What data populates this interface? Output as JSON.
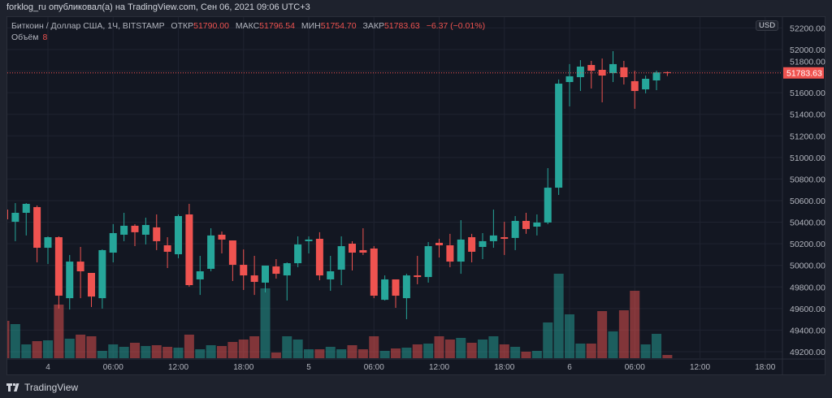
{
  "header": {
    "published": "forklog_ru опубликовал(а) на TradingView.com, Сен 06, 2021 09:06 UTC+3"
  },
  "legend": {
    "symbol": "Биткоин / Доллар США, 1Ч, BITSTAMP",
    "open_label": "ОТКР",
    "open": "51790.00",
    "high_label": "МАКС",
    "high": "51796.54",
    "low_label": "МИН",
    "low": "51754.70",
    "close_label": "ЗАКР",
    "close": "51783.63",
    "change": "−6.37 (−0.01%)",
    "volume_label": "Объём",
    "volume": "8"
  },
  "currency": "USD",
  "last_price_label": "51783.63",
  "footer": {
    "brand": "TradingView",
    "logo_icon": "tradingview-logo-icon"
  },
  "colors": {
    "up": "#26a69a",
    "down": "#ef5350",
    "background": "#131722",
    "grid": "#1f2330"
  },
  "chart_data": {
    "type": "candlestick",
    "interval": "1h",
    "ylim": [
      49150,
      52250
    ],
    "y_ticks": [
      "52200.00",
      "52000.00",
      "51800.00",
      "51600.00",
      "51400.00",
      "51200.00",
      "51000.00",
      "50800.00",
      "50600.00",
      "50400.00",
      "50200.00",
      "50000.00",
      "49800.00",
      "49600.00",
      "49400.00",
      "49200.00"
    ],
    "x_ticks": [
      {
        "t": "2021-09-04T00:00",
        "label": "4"
      },
      {
        "t": "2021-09-04T06:00",
        "label": "06:00"
      },
      {
        "t": "2021-09-04T12:00",
        "label": "12:00"
      },
      {
        "t": "2021-09-04T18:00",
        "label": "18:00"
      },
      {
        "t": "2021-09-05T00:00",
        "label": "5"
      },
      {
        "t": "2021-09-05T06:00",
        "label": "06:00"
      },
      {
        "t": "2021-09-05T12:00",
        "label": "12:00"
      },
      {
        "t": "2021-09-05T18:00",
        "label": "18:00"
      },
      {
        "t": "2021-09-06T00:00",
        "label": "6"
      },
      {
        "t": "2021-09-06T06:00",
        "label": "06:00"
      },
      {
        "t": "2021-09-06T12:00",
        "label": "12:00"
      },
      {
        "t": "2021-09-06T18:00",
        "label": "18:00"
      }
    ],
    "last_price": 51783.63,
    "columns": [
      "time",
      "open",
      "high",
      "low",
      "close",
      "volume"
    ],
    "candles": [
      [
        "2021-09-03T20:00",
        50517,
        50532,
        50412,
        50427,
        92
      ],
      [
        "2021-09-03T21:00",
        50404,
        50577,
        50224,
        50487,
        84
      ],
      [
        "2021-09-03T22:00",
        50487,
        50577,
        50277,
        50570,
        34
      ],
      [
        "2021-09-03T23:00",
        50540,
        50555,
        50028,
        50163,
        42
      ],
      [
        "2021-09-04T00:00",
        50163,
        50269,
        50013,
        50261,
        44
      ],
      [
        "2021-09-04T01:00",
        50261,
        50269,
        49599,
        49719,
        132
      ],
      [
        "2021-09-04T02:00",
        49696,
        50096,
        49591,
        50035,
        48
      ],
      [
        "2021-09-04T03:00",
        50035,
        50171,
        49696,
        49945,
        58
      ],
      [
        "2021-09-04T04:00",
        49930,
        49930,
        49614,
        49711,
        54
      ],
      [
        "2021-09-04T05:00",
        49696,
        50148,
        49599,
        50141,
        18
      ],
      [
        "2021-09-04T06:00",
        50118,
        50382,
        50028,
        50299,
        34
      ],
      [
        "2021-09-04T07:00",
        50284,
        50487,
        50224,
        50367,
        28
      ],
      [
        "2021-09-04T08:00",
        50367,
        50382,
        50178,
        50307,
        38
      ],
      [
        "2021-09-04T09:00",
        50284,
        50442,
        50194,
        50374,
        30
      ],
      [
        "2021-09-04T10:00",
        50352,
        50472,
        50141,
        50224,
        32
      ],
      [
        "2021-09-04T11:00",
        50186,
        50261,
        49975,
        50126,
        28
      ],
      [
        "2021-09-04T12:00",
        50103,
        50472,
        50066,
        50457,
        26
      ],
      [
        "2021-09-04T13:00",
        50472,
        50570,
        49802,
        49817,
        58
      ],
      [
        "2021-09-04T14:00",
        49870,
        50088,
        49726,
        49945,
        22
      ],
      [
        "2021-09-04T15:00",
        49968,
        50344,
        49945,
        50277,
        32
      ],
      [
        "2021-09-04T16:00",
        50284,
        50314,
        50111,
        50239,
        30
      ],
      [
        "2021-09-04T17:00",
        50231,
        50231,
        49855,
        50005,
        40
      ],
      [
        "2021-09-04T18:00",
        50005,
        50148,
        49772,
        49907,
        46
      ],
      [
        "2021-09-04T19:00",
        49907,
        50088,
        49726,
        49847,
        54
      ],
      [
        "2021-09-04T20:00",
        49840,
        49998,
        49749,
        49998,
        172
      ],
      [
        "2021-09-04T21:00",
        49990,
        50058,
        49877,
        49922,
        14
      ],
      [
        "2021-09-04T22:00",
        49907,
        50028,
        49674,
        50020,
        54
      ],
      [
        "2021-09-04T23:00",
        50020,
        50269,
        49983,
        50194,
        46
      ],
      [
        "2021-09-05T00:00",
        50224,
        50269,
        50111,
        50239,
        22
      ],
      [
        "2021-09-05T01:00",
        50246,
        50307,
        49862,
        49907,
        22
      ],
      [
        "2021-09-05T02:00",
        49870,
        50088,
        49764,
        49945,
        28
      ],
      [
        "2021-09-05T03:00",
        49960,
        50269,
        49817,
        50178,
        22
      ],
      [
        "2021-09-05T04:00",
        50201,
        50224,
        49953,
        50118,
        32
      ],
      [
        "2021-09-05T05:00",
        50141,
        50344,
        50096,
        50118,
        22
      ],
      [
        "2021-09-05T06:00",
        50156,
        50178,
        49696,
        49719,
        54
      ],
      [
        "2021-09-05T07:00",
        49681,
        49907,
        49674,
        49870,
        18
      ],
      [
        "2021-09-05T08:00",
        49870,
        49870,
        49606,
        49719,
        24
      ],
      [
        "2021-09-05T09:00",
        49696,
        49922,
        49501,
        49907,
        26
      ],
      [
        "2021-09-05T10:00",
        49907,
        50088,
        49825,
        49892,
        34
      ],
      [
        "2021-09-05T11:00",
        49892,
        50216,
        49840,
        50178,
        36
      ],
      [
        "2021-09-05T12:00",
        50209,
        50246,
        50073,
        50186,
        54
      ],
      [
        "2021-09-05T13:00",
        50186,
        50292,
        49983,
        50035,
        46
      ],
      [
        "2021-09-05T14:00",
        50035,
        50419,
        49922,
        50239,
        50
      ],
      [
        "2021-09-05T15:00",
        50261,
        50292,
        50028,
        50126,
        38
      ],
      [
        "2021-09-05T16:00",
        50171,
        50299,
        50058,
        50224,
        46
      ],
      [
        "2021-09-05T17:00",
        50224,
        50517,
        50163,
        50277,
        54
      ],
      [
        "2021-09-05T18:00",
        50261,
        50404,
        50096,
        50246,
        34
      ],
      [
        "2021-09-05T19:00",
        50254,
        50457,
        50141,
        50412,
        28
      ],
      [
        "2021-09-05T20:00",
        50412,
        50487,
        50292,
        50337,
        16
      ],
      [
        "2021-09-05T21:00",
        50359,
        50472,
        50277,
        50397,
        18
      ],
      [
        "2021-09-05T22:00",
        50397,
        50901,
        50382,
        50720,
        88
      ],
      [
        "2021-09-05T23:00",
        50720,
        51722,
        50653,
        51684,
        208
      ],
      [
        "2021-09-06T00:00",
        51699,
        51865,
        51473,
        51752,
        108
      ],
      [
        "2021-09-06T01:00",
        51744,
        51902,
        51616,
        51842,
        36
      ],
      [
        "2021-09-06T02:00",
        51857,
        51895,
        51639,
        51804,
        36
      ],
      [
        "2021-09-06T03:00",
        51812,
        51917,
        51511,
        51759,
        116
      ],
      [
        "2021-09-06T04:00",
        51782,
        51985,
        51699,
        51865,
        66
      ],
      [
        "2021-09-06T05:00",
        51835,
        51895,
        51676,
        51744,
        118
      ],
      [
        "2021-09-06T06:00",
        51707,
        51804,
        51451,
        51616,
        166
      ],
      [
        "2021-09-06T07:00",
        51631,
        51759,
        51594,
        51729,
        34
      ],
      [
        "2021-09-06T08:00",
        51714,
        51804,
        51624,
        51789,
        60
      ],
      [
        "2021-09-06T09:00",
        51790,
        51796.54,
        51754.7,
        51783.63,
        8
      ]
    ]
  }
}
